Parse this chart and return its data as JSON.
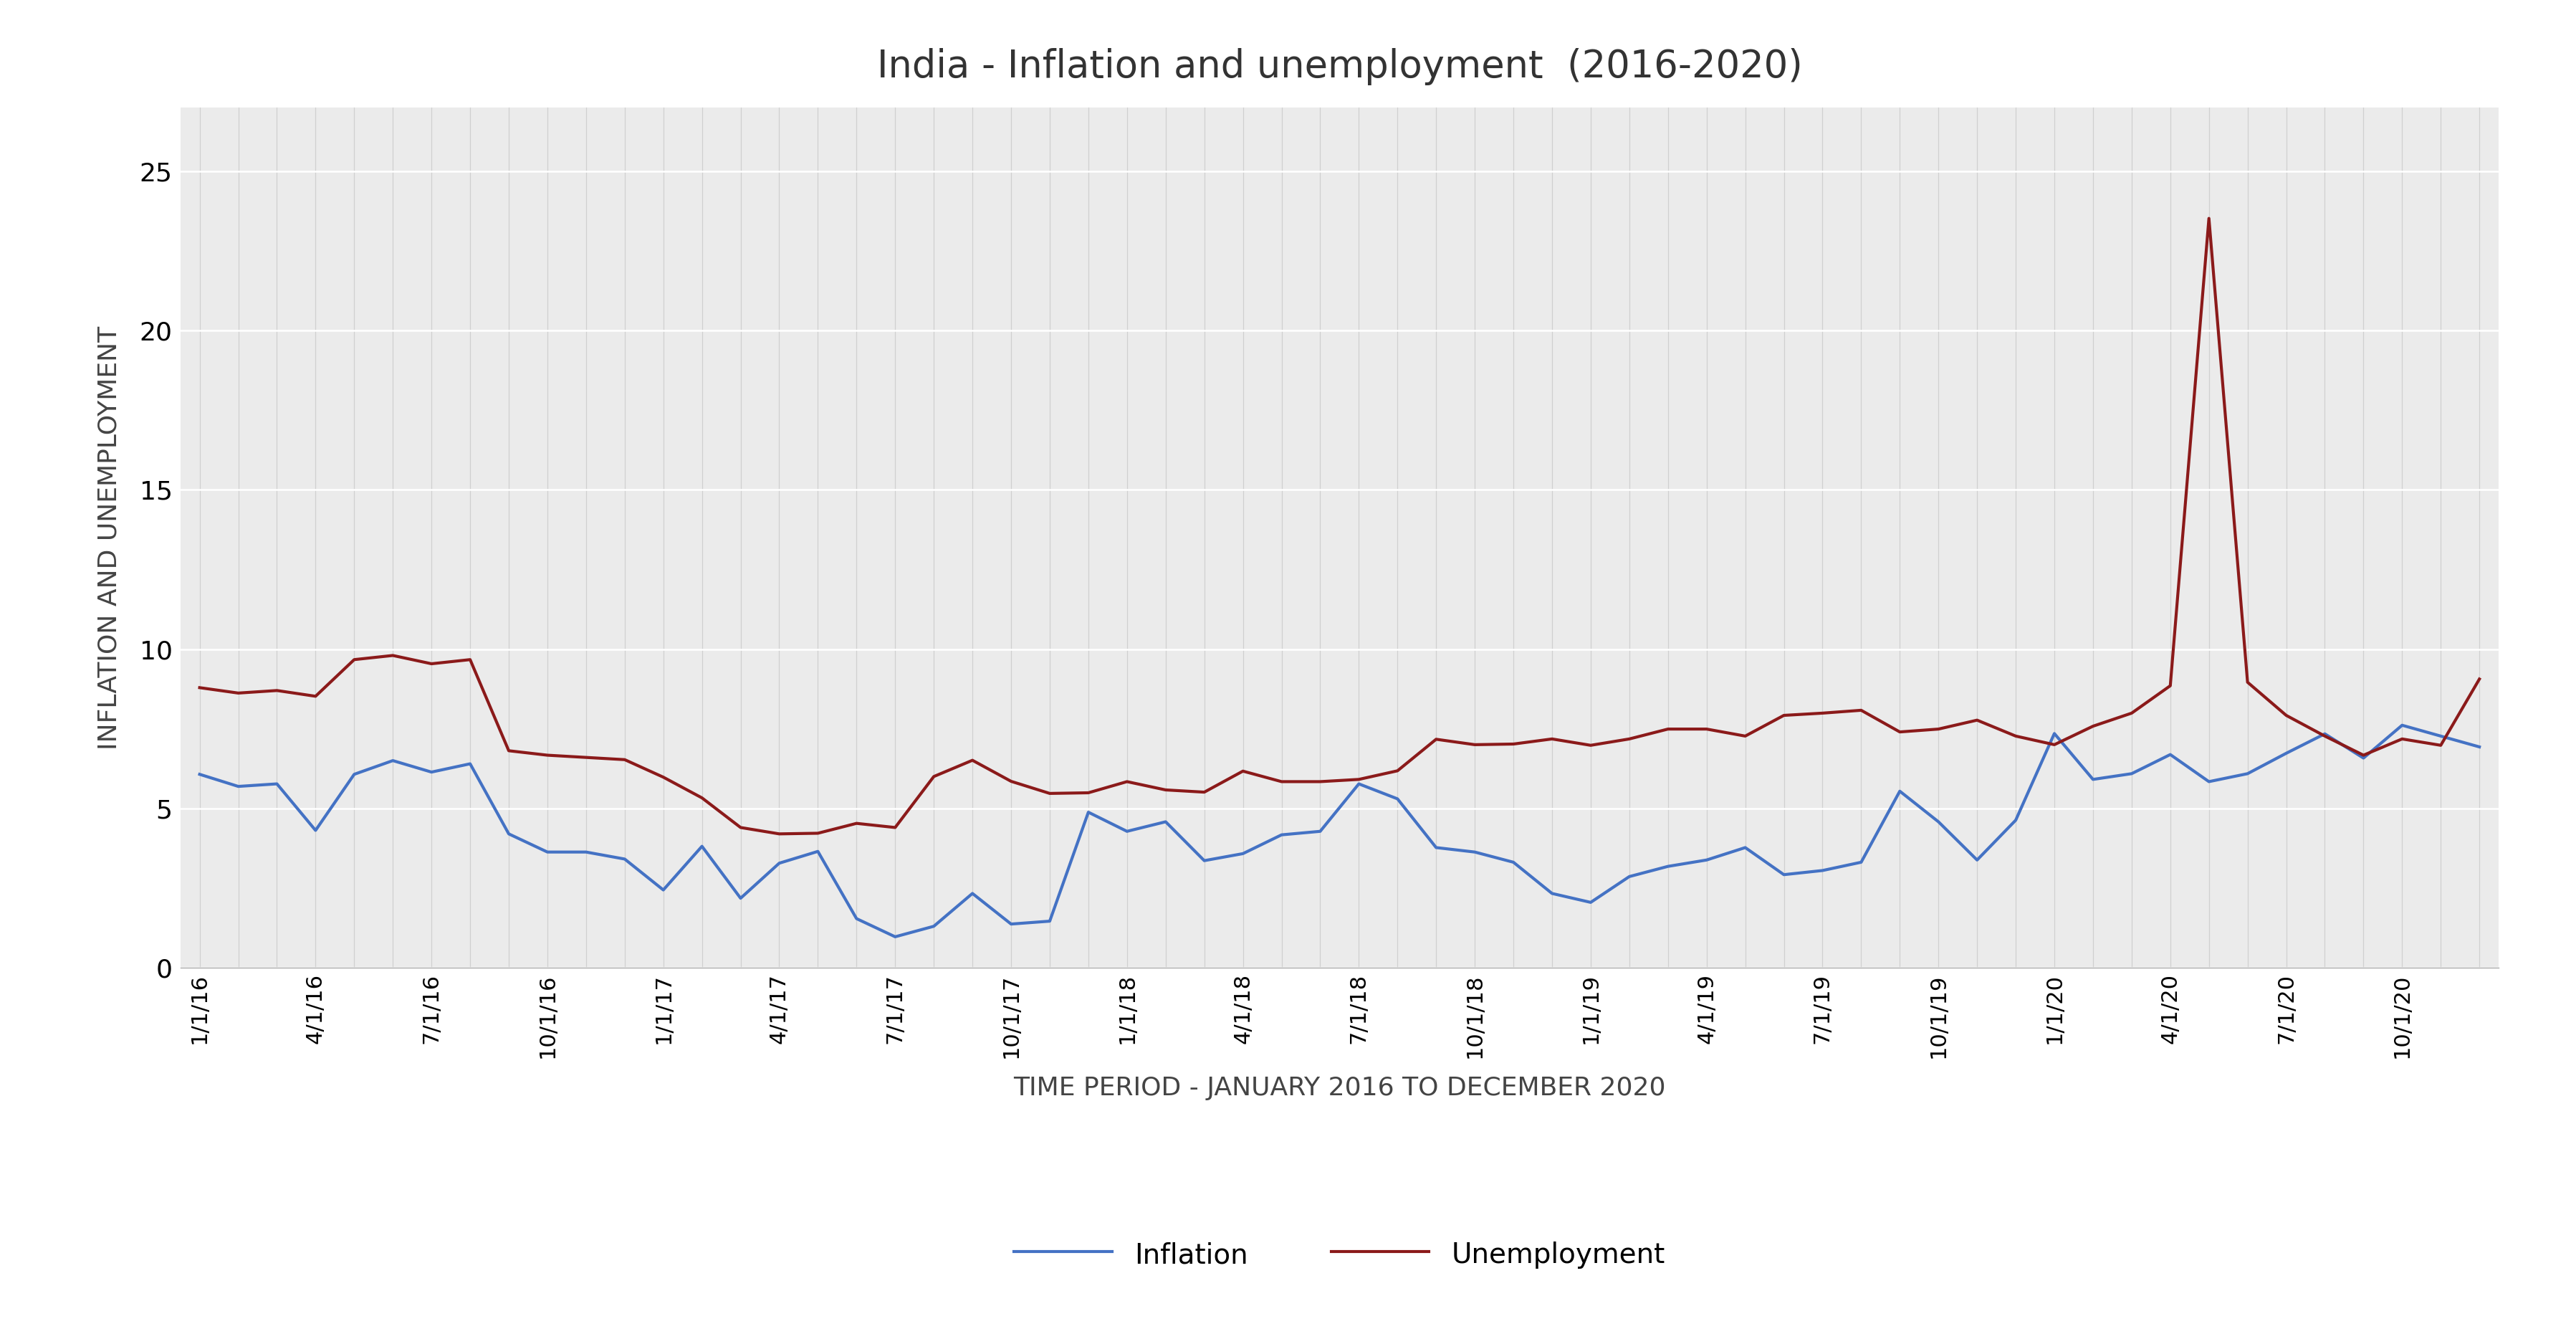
{
  "title": "India - Inflation and unemployment  (2016-2020)",
  "xlabel": "TIME PERIOD - JANUARY 2016 TO DECEMBER 2020",
  "ylabel": "INFLATION AND UNEMPLOYMENT",
  "ylim": [
    0,
    27
  ],
  "yticks": [
    0,
    5,
    10,
    15,
    20,
    25
  ],
  "inflation_color": "#4472C4",
  "unemployment_color": "#8B1A1A",
  "background_color": "#EBEBEB",
  "figure_bg": "#FFFFFF",
  "inflation": [
    6.07,
    5.69,
    5.77,
    4.31,
    6.07,
    6.5,
    6.14,
    6.4,
    4.2,
    3.63,
    3.63,
    3.41,
    2.44,
    3.81,
    2.18,
    3.28,
    3.65,
    1.54,
    0.97,
    1.3,
    2.33,
    1.37,
    1.46,
    4.88,
    4.28,
    4.58,
    3.36,
    3.58,
    4.17,
    4.28,
    5.77,
    5.3,
    3.77,
    3.63,
    3.31,
    2.33,
    2.05,
    2.86,
    3.18,
    3.38,
    3.77,
    2.92,
    3.05,
    3.31,
    5.54,
    4.58,
    3.38,
    4.63,
    7.35,
    5.91,
    6.09,
    6.69,
    5.84,
    6.09,
    6.73,
    7.34,
    6.58,
    7.61,
    7.27,
    6.93
  ],
  "unemployment": [
    8.79,
    8.62,
    8.7,
    8.52,
    9.67,
    9.8,
    9.54,
    9.67,
    6.81,
    6.67,
    6.6,
    6.53,
    5.98,
    5.33,
    4.4,
    4.2,
    4.22,
    4.53,
    4.4,
    6.0,
    6.51,
    5.85,
    5.47,
    5.49,
    5.84,
    5.58,
    5.51,
    6.17,
    5.84,
    5.84,
    5.91,
    6.18,
    7.17,
    7.0,
    7.02,
    7.18,
    6.98,
    7.18,
    7.49,
    7.49,
    7.27,
    7.92,
    7.99,
    8.08,
    7.4,
    7.49,
    7.77,
    7.27,
    7.0,
    7.58,
    7.99,
    8.85,
    23.52,
    8.96,
    7.92,
    7.27,
    6.67,
    7.18,
    6.98,
    9.06
  ],
  "xtick_labels": [
    "1/1/16",
    "4/1/16",
    "7/1/16",
    "10/1/16",
    "1/1/17",
    "4/1/17",
    "7/1/17",
    "10/1/17",
    "1/1/18",
    "4/1/18",
    "7/1/18",
    "10/1/18",
    "1/1/19",
    "4/1/19",
    "7/1/19",
    "10/1/19",
    "1/1/20",
    "4/1/20",
    "7/1/20",
    "10/1/20"
  ],
  "xtick_positions": [
    0,
    3,
    6,
    9,
    12,
    15,
    18,
    21,
    24,
    27,
    30,
    33,
    36,
    39,
    42,
    45,
    48,
    51,
    54,
    57
  ]
}
